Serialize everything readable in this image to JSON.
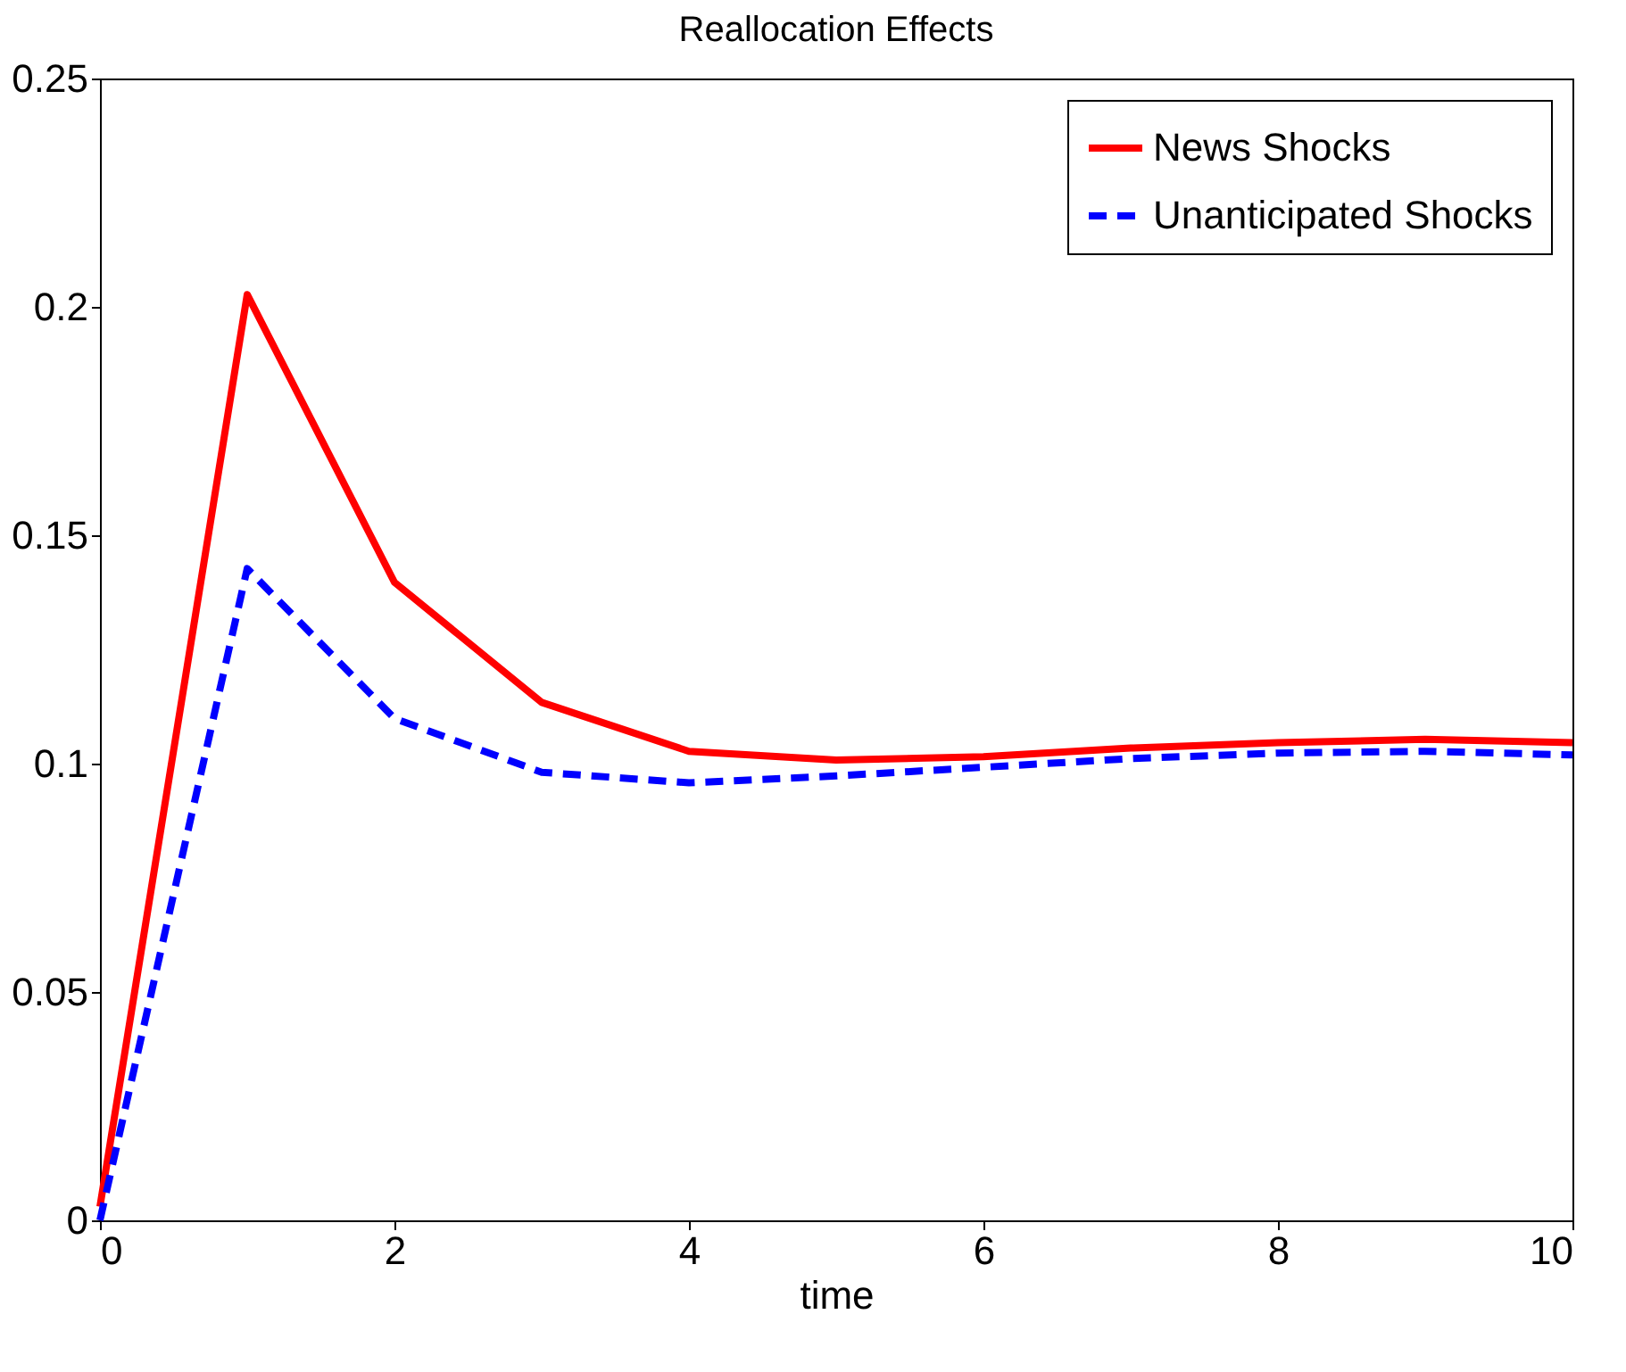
{
  "chart_data": {
    "type": "line",
    "title": "Reallocation Effects",
    "xlabel": "time",
    "x": [
      0,
      1,
      2,
      3,
      4,
      5,
      6,
      7,
      8,
      9,
      10
    ],
    "series": [
      {
        "name": "News Shocks",
        "color": "#ff0000",
        "line_style": "solid",
        "values": [
          0.003,
          0.2027,
          0.1397,
          0.1134,
          0.1027,
          0.1008,
          0.1015,
          0.1034,
          0.1046,
          0.1053,
          0.1046
        ]
      },
      {
        "name": "Unanticipated Shocks",
        "color": "#0000ff",
        "line_style": "dashed",
        "values": [
          0.0,
          0.1427,
          0.1099,
          0.0981,
          0.0958,
          0.0973,
          0.0992,
          0.1011,
          0.1023,
          0.1027,
          0.1019
        ]
      }
    ],
    "xlim": [
      0,
      10
    ],
    "xticks": [
      0,
      2,
      4,
      6,
      8,
      10
    ],
    "ylim": [
      0,
      0.25
    ],
    "yticks": [
      0,
      0.05,
      0.1,
      0.15,
      0.2,
      0.25
    ],
    "grid": false,
    "legend": "top right",
    "marker": "none"
  }
}
